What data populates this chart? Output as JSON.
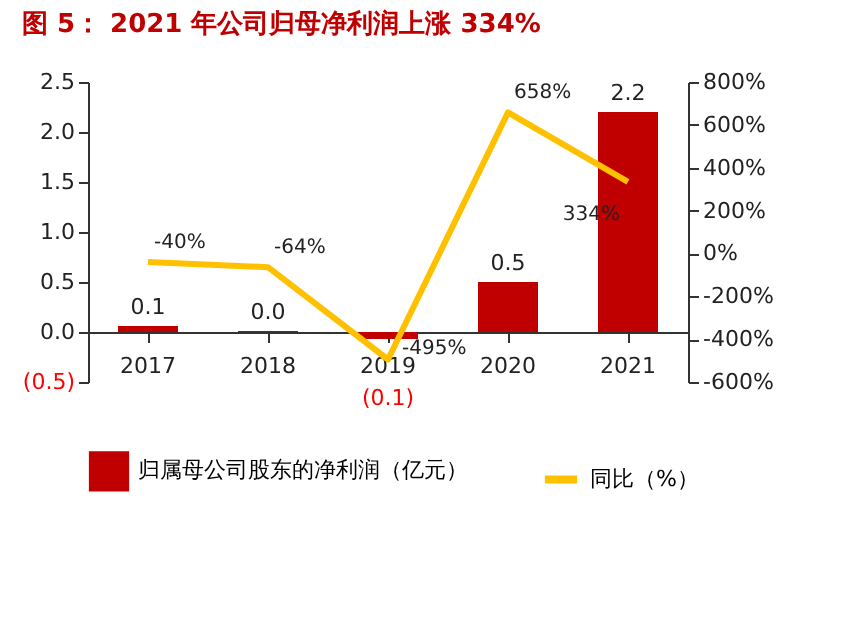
{
  "chart_data": {
    "type": "bar",
    "title": "图 5： 2021 年公司归母净利润上涨 334%",
    "categories": [
      "2017",
      "2018",
      "2019",
      "2020",
      "2021"
    ],
    "series": [
      {
        "name": "归属母公司股东的净利润（亿元）",
        "color": "#c00000",
        "values": [
          0.06,
          0.01,
          -0.07,
          0.5,
          2.2
        ],
        "value_labels": [
          "0.1",
          "0.0",
          "(0.1)",
          "0.5",
          "2.2"
        ]
      },
      {
        "type": "line",
        "name": "同比（%）",
        "color": "#ffc000",
        "axis": "y2",
        "values": [
          -40,
          -64,
          -495,
          658,
          334
        ],
        "value_labels": [
          "-40%",
          "-64%",
          "-495%",
          "658%",
          "334%"
        ]
      }
    ],
    "ylim": [
      -0.5,
      2.5
    ],
    "yticks": [
      {
        "value": -0.5,
        "label": "(0.5)"
      },
      {
        "value": 0,
        "label": "0.0"
      },
      0.5,
      {
        "value": 1,
        "label": "1.0"
      },
      1.5,
      {
        "value": 2,
        "label": "2.0"
      },
      2.5
    ],
    "y2lim": [
      -600,
      800
    ],
    "y2ticks": [
      {
        "value": -600,
        "label": "-600%"
      },
      {
        "value": -400,
        "label": "-400%"
      },
      {
        "value": -200,
        "label": "-200%"
      },
      {
        "value": 0,
        "label": "0%"
      },
      {
        "value": 200,
        "label": "200%"
      },
      {
        "value": 400,
        "label": "400%"
      },
      {
        "value": 600,
        "label": "600%"
      },
      {
        "value": 800,
        "label": "800%"
      }
    ],
    "grid": false,
    "legend": "bottom",
    "marker": "none",
    "line_style": "solid"
  }
}
